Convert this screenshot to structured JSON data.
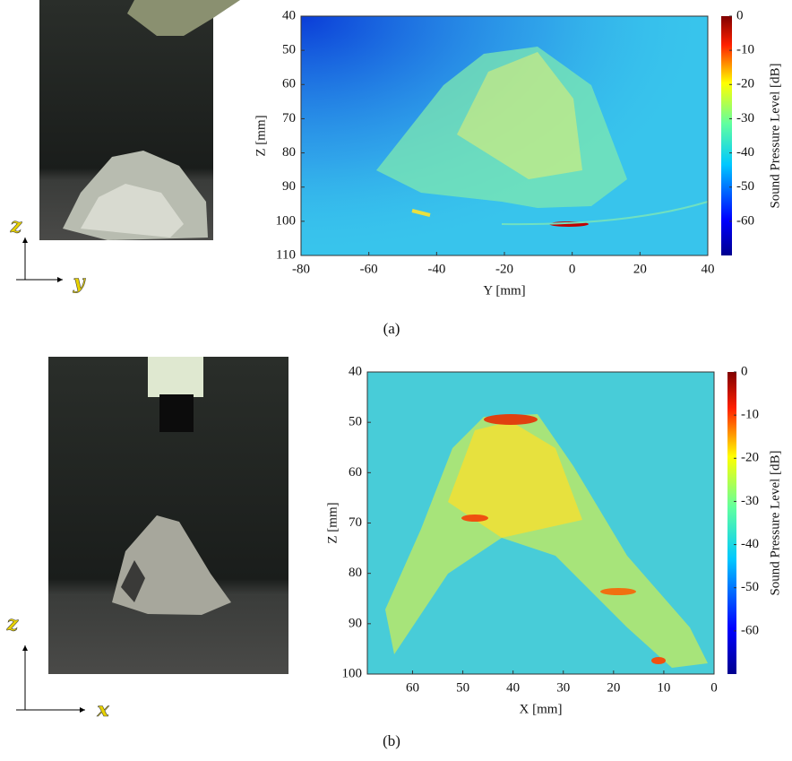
{
  "chart_data": [
    {
      "type": "heatmap",
      "panel_label": "(a)",
      "photo_axes": [
        "z",
        "y"
      ],
      "xlabel": "Y [mm]",
      "ylabel": "Z [mm]",
      "colorbar_label": "Sound Pressure Level [dB]",
      "xlim": [
        -80,
        40
      ],
      "xticks": [
        -80,
        -60,
        -40,
        -20,
        0,
        20,
        40
      ],
      "ylim": [
        110,
        40
      ],
      "yticks": [
        40,
        50,
        60,
        70,
        80,
        90,
        100,
        110
      ],
      "clim": [
        -70,
        0
      ],
      "cticks": [
        0,
        -10,
        -20,
        -30,
        -40,
        -50,
        -60
      ]
    },
    {
      "type": "heatmap",
      "panel_label": "(b)",
      "photo_axes": [
        "z",
        "x"
      ],
      "xlabel": "X [mm]",
      "ylabel": "Z [mm]",
      "colorbar_label": "Sound Pressure Level [dB]",
      "xlim": [
        69,
        0
      ],
      "xticks": [
        60,
        50,
        40,
        30,
        20,
        10,
        0
      ],
      "ylim": [
        100,
        40
      ],
      "yticks": [
        40,
        50,
        60,
        70,
        80,
        90,
        100
      ],
      "clim": [
        -70,
        0
      ],
      "cticks": [
        0,
        -10,
        -20,
        -30,
        -40,
        -50,
        -60
      ]
    }
  ]
}
